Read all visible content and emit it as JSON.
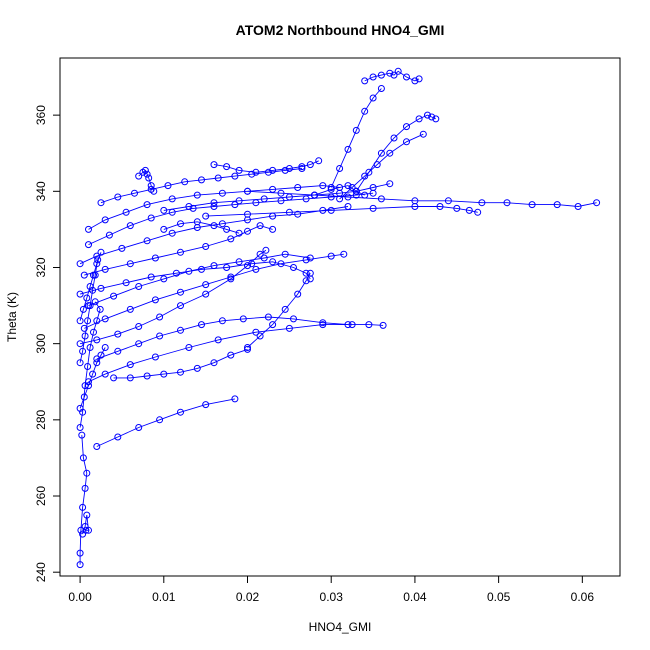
{
  "chart_data": {
    "type": "scatter",
    "title": "ATOM2 Northbound HNO4_GMI",
    "xlabel": "HNO4_GMI",
    "ylabel": "Theta (K)",
    "xlim": [
      -0.0024,
      0.0645
    ],
    "ylim": [
      239.0,
      375.0
    ],
    "xticks": [
      0.0,
      0.01,
      0.02,
      0.03,
      0.04,
      0.05,
      0.06
    ],
    "xtick_labels": [
      "0.00",
      "0.01",
      "0.02",
      "0.03",
      "0.04",
      "0.05",
      "0.06"
    ],
    "yticks": [
      240,
      260,
      280,
      300,
      320,
      340,
      360
    ],
    "ytick_labels": [
      "240",
      "260",
      "280",
      "300",
      "320",
      "340",
      "360"
    ],
    "grid": false,
    "legend": "none",
    "color": "#0000ff",
    "marker": "open-circle",
    "connected": true,
    "series": [
      {
        "x": [
          0.0,
          0.0,
          0.0001,
          0.0003,
          0.0006,
          0.0008,
          0.0004,
          0.0002
        ],
        "y": [
          242.0,
          245.0,
          251.0,
          257.0,
          262.0,
          266.0,
          270.0,
          276.0
        ]
      },
      {
        "x": [
          0.0003,
          0.0006,
          0.0008,
          0.001,
          0.0007
        ],
        "y": [
          250.0,
          252.0,
          255.0,
          251.0,
          251.0
        ]
      },
      {
        "x": [
          0.0,
          0.0003,
          0.0006,
          0.0009,
          0.0012,
          0.0016,
          0.002,
          0.0024,
          0.0018
        ],
        "y": [
          278.0,
          282.0,
          289.0,
          294.0,
          299.0,
          303.0,
          306.0,
          309.0,
          311.0
        ]
      },
      {
        "x": [
          0.002,
          0.0045,
          0.007,
          0.0095,
          0.012,
          0.015,
          0.0185
        ],
        "y": [
          273.0,
          275.5,
          278.0,
          280.0,
          282.0,
          284.0,
          285.5
        ]
      },
      {
        "x": [
          0.001,
          0.003,
          0.006,
          0.009,
          0.013,
          0.0165,
          0.021,
          0.025,
          0.029,
          0.0325,
          0.0345,
          0.0362
        ],
        "y": [
          290.0,
          292.0,
          294.5,
          296.5,
          299.0,
          301.0,
          303.0,
          304.0,
          305.0,
          305.0,
          305.0,
          304.8
        ]
      },
      {
        "x": [
          0.004,
          0.006,
          0.008,
          0.01,
          0.012,
          0.014,
          0.016,
          0.018,
          0.02
        ],
        "y": [
          291.0,
          291.0,
          291.5,
          292.0,
          292.5,
          293.5,
          295.0,
          297.0,
          298.5
        ]
      },
      {
        "x": [
          0.002,
          0.0045,
          0.007,
          0.0095,
          0.012,
          0.0145,
          0.017,
          0.0195,
          0.0225,
          0.0255,
          0.029,
          0.032
        ],
        "y": [
          296.0,
          298.0,
          300.0,
          302.0,
          303.5,
          305.0,
          306.0,
          306.5,
          307.0,
          306.5,
          305.5,
          305.0
        ]
      },
      {
        "x": [
          0.0,
          0.002,
          0.0045,
          0.007,
          0.0095,
          0.012,
          0.015,
          0.018,
          0.02,
          0.0215,
          0.0222
        ],
        "y": [
          300.0,
          301.0,
          302.5,
          304.5,
          307.0,
          310.0,
          313.0,
          317.0,
          320.5,
          323.5,
          324.5
        ]
      },
      {
        "x": [
          0.0005,
          0.003,
          0.006,
          0.009,
          0.012,
          0.015,
          0.018,
          0.021,
          0.024,
          0.027,
          0.03,
          0.0315
        ],
        "y": [
          304.0,
          306.5,
          309.0,
          311.5,
          313.5,
          315.5,
          317.5,
          319.5,
          321.0,
          322.0,
          323.0,
          323.5
        ]
      },
      {
        "x": [
          0.001,
          0.004,
          0.007,
          0.01,
          0.013,
          0.016,
          0.019,
          0.022,
          0.0245,
          0.0275
        ],
        "y": [
          310.0,
          312.5,
          315.0,
          317.0,
          319.0,
          320.5,
          321.5,
          322.5,
          323.5,
          322.5
        ]
      },
      {
        "x": [
          0.0,
          0.0025,
          0.0055,
          0.0085,
          0.0115,
          0.0145,
          0.0175,
          0.0205,
          0.023,
          0.0255,
          0.027,
          0.0275
        ],
        "y": [
          313.0,
          314.5,
          316.0,
          317.5,
          318.5,
          319.5,
          320.0,
          321.0,
          321.5,
          320.0,
          318.5,
          317.0
        ]
      },
      {
        "x": [
          0.0005,
          0.003,
          0.006,
          0.009,
          0.012,
          0.015,
          0.018,
          0.02,
          0.0215,
          0.023
        ],
        "y": [
          318.0,
          319.5,
          321.0,
          322.5,
          324.0,
          325.5,
          327.5,
          329.5,
          331.0,
          330.0
        ]
      },
      {
        "x": [
          0.0,
          0.002,
          0.005,
          0.008,
          0.011,
          0.014,
          0.017,
          0.02,
          0.023,
          0.026,
          0.029,
          0.032
        ],
        "y": [
          321.0,
          323.0,
          325.0,
          327.0,
          329.0,
          330.5,
          331.5,
          332.5,
          333.5,
          334.0,
          335.0,
          336.0
        ]
      },
      {
        "x": [
          0.001,
          0.0035,
          0.006,
          0.0085,
          0.011,
          0.0135,
          0.016,
          0.0185,
          0.021,
          0.024,
          0.027,
          0.03,
          0.033,
          0.035
        ],
        "y": [
          326.0,
          328.5,
          331.0,
          333.0,
          334.5,
          335.5,
          336.0,
          336.5,
          337.0,
          337.5,
          338.0,
          338.5,
          339.0,
          339.5
        ]
      },
      {
        "x": [
          0.001,
          0.003,
          0.0055,
          0.008,
          0.011,
          0.014,
          0.017,
          0.02,
          0.023,
          0.026,
          0.029,
          0.031
        ],
        "y": [
          330.0,
          332.5,
          334.5,
          336.5,
          338.0,
          339.0,
          339.5,
          340.0,
          340.5,
          341.0,
          341.5,
          341.0
        ]
      },
      {
        "x": [
          0.0025,
          0.0045,
          0.0065,
          0.0085,
          0.0105,
          0.0125,
          0.0145,
          0.0165,
          0.0185,
          0.0205,
          0.0225,
          0.0245,
          0.0265
        ],
        "y": [
          337.0,
          338.5,
          339.5,
          340.5,
          341.5,
          342.5,
          343.0,
          343.5,
          344.0,
          344.5,
          345.0,
          345.5,
          346.0
        ]
      },
      {
        "x": [
          0.007,
          0.0075,
          0.0078,
          0.008,
          0.0082,
          0.0085,
          0.0088
        ],
        "y": [
          344.0,
          345.0,
          345.5,
          344.5,
          343.5,
          341.5,
          340.0
        ]
      },
      {
        "x": [
          0.016,
          0.0175,
          0.019,
          0.021,
          0.023,
          0.025,
          0.0265,
          0.0275,
          0.0285
        ],
        "y": [
          347.0,
          346.5,
          345.5,
          345.0,
          345.5,
          346.0,
          346.5,
          347.0,
          348.0
        ]
      },
      {
        "x": [
          0.01,
          0.013,
          0.016,
          0.019,
          0.022,
          0.025,
          0.028,
          0.031,
          0.033,
          0.035,
          0.037
        ],
        "y": [
          335.0,
          336.0,
          337.0,
          337.5,
          338.0,
          338.5,
          339.0,
          339.5,
          340.0,
          341.0,
          342.0
        ]
      },
      {
        "x": [
          0.02,
          0.024,
          0.028,
          0.032,
          0.036,
          0.04,
          0.044,
          0.048,
          0.051,
          0.054,
          0.057,
          0.0595,
          0.0617
        ],
        "y": [
          340.0,
          339.5,
          339.0,
          338.5,
          338.0,
          337.5,
          337.5,
          337.0,
          337.0,
          336.5,
          336.5,
          336.0,
          337.0
        ]
      },
      {
        "x": [
          0.015,
          0.02,
          0.025,
          0.03,
          0.035,
          0.04,
          0.043,
          0.045,
          0.0465,
          0.0475
        ],
        "y": [
          333.5,
          334.0,
          334.5,
          335.0,
          335.5,
          336.0,
          336.0,
          335.5,
          335.0,
          334.5
        ]
      },
      {
        "x": [
          0.028,
          0.03,
          0.032,
          0.033,
          0.034
        ],
        "y": [
          339.0,
          340.5,
          341.5,
          340.0,
          339.0
        ]
      },
      {
        "x": [
          0.034,
          0.035,
          0.036,
          0.037,
          0.0375,
          0.038,
          0.039,
          0.04,
          0.0405
        ],
        "y": [
          369.0,
          370.0,
          370.5,
          371.0,
          370.5,
          371.5,
          370.0,
          369.0,
          369.5
        ]
      },
      {
        "x": [
          0.033,
          0.0345,
          0.036,
          0.0375,
          0.039,
          0.0405,
          0.0415,
          0.042,
          0.0425
        ],
        "y": [
          340.0,
          345.0,
          350.0,
          354.0,
          357.0,
          359.0,
          360.0,
          359.5,
          359.0
        ]
      },
      {
        "x": [
          0.031,
          0.0325,
          0.034,
          0.0355,
          0.037,
          0.039,
          0.041
        ],
        "y": [
          338.0,
          341.0,
          344.0,
          347.0,
          350.0,
          353.0,
          355.0
        ]
      },
      {
        "x": [
          0.03,
          0.031,
          0.032,
          0.033,
          0.034,
          0.035,
          0.036
        ],
        "y": [
          341.0,
          346.0,
          351.0,
          356.0,
          361.0,
          364.5,
          367.0
        ]
      },
      {
        "x": [
          0.02,
          0.0215,
          0.023,
          0.0245,
          0.026,
          0.027,
          0.0275
        ],
        "y": [
          299.0,
          302.0,
          305.0,
          309.0,
          313.0,
          316.5,
          318.5
        ]
      },
      {
        "x": [
          0.0,
          0.0005,
          0.001,
          0.0015,
          0.002,
          0.0025,
          0.003
        ],
        "y": [
          283.0,
          286.0,
          289.0,
          292.0,
          295.0,
          297.0,
          299.0
        ]
      },
      {
        "x": [
          0.0,
          0.0003,
          0.0006,
          0.0009,
          0.0012,
          0.0015,
          0.0018,
          0.0021
        ],
        "y": [
          295.0,
          298.0,
          302.0,
          306.0,
          310.0,
          314.0,
          318.0,
          322.0
        ]
      },
      {
        "x": [
          0.0,
          0.0004,
          0.0008,
          0.0012,
          0.0016,
          0.002,
          0.0025
        ],
        "y": [
          306.0,
          309.0,
          312.0,
          315.0,
          318.0,
          321.0,
          324.0
        ]
      },
      {
        "x": [
          0.01,
          0.012,
          0.014,
          0.016,
          0.0175,
          0.019
        ],
        "y": [
          330.0,
          331.5,
          332.0,
          331.0,
          330.0,
          329.0
        ]
      }
    ]
  }
}
